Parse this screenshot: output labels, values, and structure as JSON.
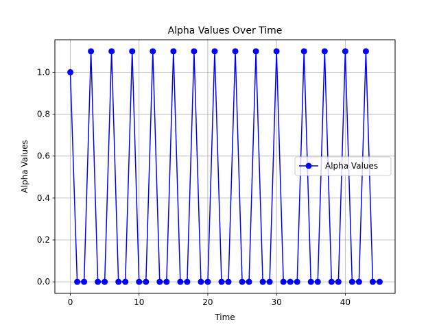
{
  "chart_data": {
    "type": "line",
    "title": "Alpha Values Over Time",
    "xlabel": "Time",
    "ylabel": "Alpha Values",
    "xlim": [
      -2.25,
      47.25
    ],
    "ylim": [
      -0.055,
      1.155
    ],
    "x_ticks": [
      0,
      10,
      20,
      30,
      40
    ],
    "x_tick_labels": [
      "0",
      "10",
      "20",
      "30",
      "40"
    ],
    "y_ticks": [
      0.0,
      0.2,
      0.4,
      0.6,
      0.8,
      1.0
    ],
    "y_tick_labels": [
      "0.0",
      "0.2",
      "0.4",
      "0.6",
      "0.8",
      "1.0"
    ],
    "grid": true,
    "legend_position": "center-right",
    "series": [
      {
        "name": "Alpha Values",
        "color": "#0000ff",
        "marker": "circle",
        "x": [
          0,
          1,
          2,
          3,
          4,
          5,
          6,
          7,
          8,
          9,
          10,
          11,
          12,
          13,
          14,
          15,
          16,
          17,
          18,
          19,
          20,
          21,
          22,
          23,
          24,
          25,
          26,
          27,
          28,
          29,
          30,
          31,
          32,
          33,
          34,
          35,
          36,
          37,
          38,
          39,
          40,
          41,
          42,
          43,
          44,
          45
        ],
        "y": [
          1.0,
          0,
          0,
          1.1,
          0,
          0,
          1.1,
          0,
          0,
          1.1,
          0,
          0,
          1.1,
          0,
          0,
          1.1,
          0,
          0,
          1.1,
          0,
          0,
          1.1,
          0,
          0,
          1.1,
          0,
          0,
          1.1,
          0,
          0,
          1.1,
          0,
          0,
          0,
          1.1,
          0,
          0,
          1.1,
          0,
          0,
          1.1,
          0,
          0,
          1.1,
          0,
          0
        ]
      }
    ]
  }
}
